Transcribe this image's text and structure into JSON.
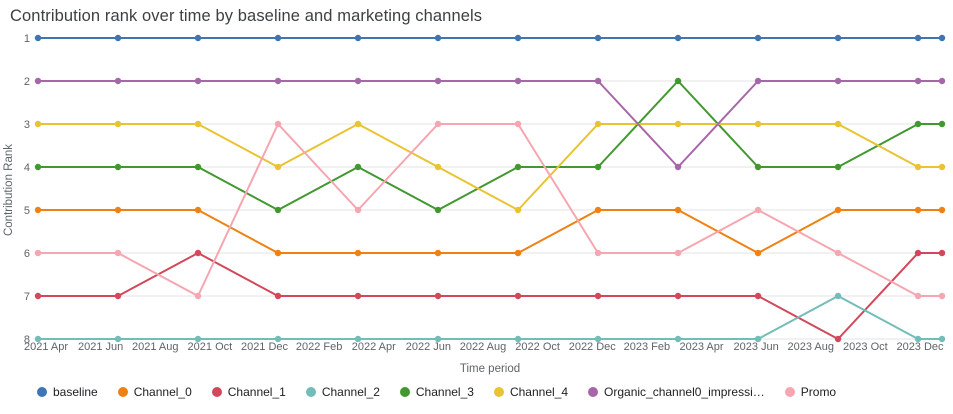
{
  "title": "Contribution rank over time by baseline and marketing channels",
  "legend": {
    "items": [
      {
        "label": "baseline",
        "color": "#3d76b4"
      },
      {
        "label": "Channel_0",
        "color": "#ee8112"
      },
      {
        "label": "Channel_1",
        "color": "#d2485a"
      },
      {
        "label": "Channel_2",
        "color": "#72bdb8"
      },
      {
        "label": "Channel_3",
        "color": "#41982f"
      },
      {
        "label": "Channel_4",
        "color": "#e9c331"
      },
      {
        "label": "Organic_channel0_impressi…",
        "color": "#a766a7"
      },
      {
        "label": "Promo",
        "color": "#f6a6b1"
      }
    ]
  },
  "chart_data": {
    "type": "line",
    "title": "Contribution rank over time by baseline and marketing channels",
    "xlabel": "Time period",
    "ylabel": "Contribution Rank",
    "grid": "horizontal-only",
    "legend_position": "bottom",
    "y_axis": {
      "ticks": [
        1,
        2,
        3,
        4,
        5,
        6,
        7,
        8
      ],
      "inverted": true,
      "min": 1,
      "max": 8
    },
    "x_tick_labels": [
      "2021 Apr",
      "2021 Jun",
      "2021 Aug",
      "2021 Oct",
      "2021 Dec",
      "2022 Feb",
      "2022 Apr",
      "2022 Jun",
      "2022 Aug",
      "2022 Oct",
      "2022 Dec",
      "2023 Feb",
      "2023 Apr",
      "2023 Jun",
      "2023 Aug",
      "2023 Oct",
      "2023 Dec"
    ],
    "point_positions": [
      0,
      0.0885,
      0.177,
      0.2655,
      0.354,
      0.4425,
      0.531,
      0.6195,
      0.708,
      0.7965,
      0.885,
      0.9735,
      1
    ],
    "series": [
      {
        "name": "baseline",
        "color": "#3d76b4",
        "values": [
          1,
          1,
          1,
          1,
          1,
          1,
          1,
          1,
          1,
          1,
          1,
          1,
          1
        ]
      },
      {
        "name": "Channel_0",
        "color": "#ee8112",
        "values": [
          5,
          5,
          5,
          6,
          6,
          6,
          6,
          5,
          5,
          6,
          5,
          5,
          5
        ]
      },
      {
        "name": "Channel_1",
        "color": "#d2485a",
        "values": [
          7,
          7,
          6,
          7,
          7,
          7,
          7,
          7,
          7,
          7,
          8,
          6,
          6
        ]
      },
      {
        "name": "Channel_2",
        "color": "#72bdb8",
        "values": [
          8,
          8,
          8,
          8,
          8,
          8,
          8,
          8,
          8,
          8,
          7,
          8,
          8
        ]
      },
      {
        "name": "Channel_3",
        "color": "#41982f",
        "values": [
          4,
          4,
          4,
          5,
          4,
          5,
          4,
          4,
          2,
          4,
          4,
          3,
          3
        ]
      },
      {
        "name": "Channel_4",
        "color": "#e9c331",
        "values": [
          3,
          3,
          3,
          4,
          3,
          4,
          5,
          3,
          3,
          3,
          3,
          4,
          4
        ]
      },
      {
        "name": "Organic_channel0_impressi…",
        "color": "#a766a7",
        "values": [
          2,
          2,
          2,
          2,
          2,
          2,
          2,
          2,
          4,
          2,
          2,
          2,
          2
        ]
      },
      {
        "name": "Promo",
        "color": "#f6a6b1",
        "values": [
          6,
          6,
          7,
          3,
          5,
          3,
          3,
          6,
          6,
          5,
          6,
          7,
          7
        ]
      }
    ]
  }
}
